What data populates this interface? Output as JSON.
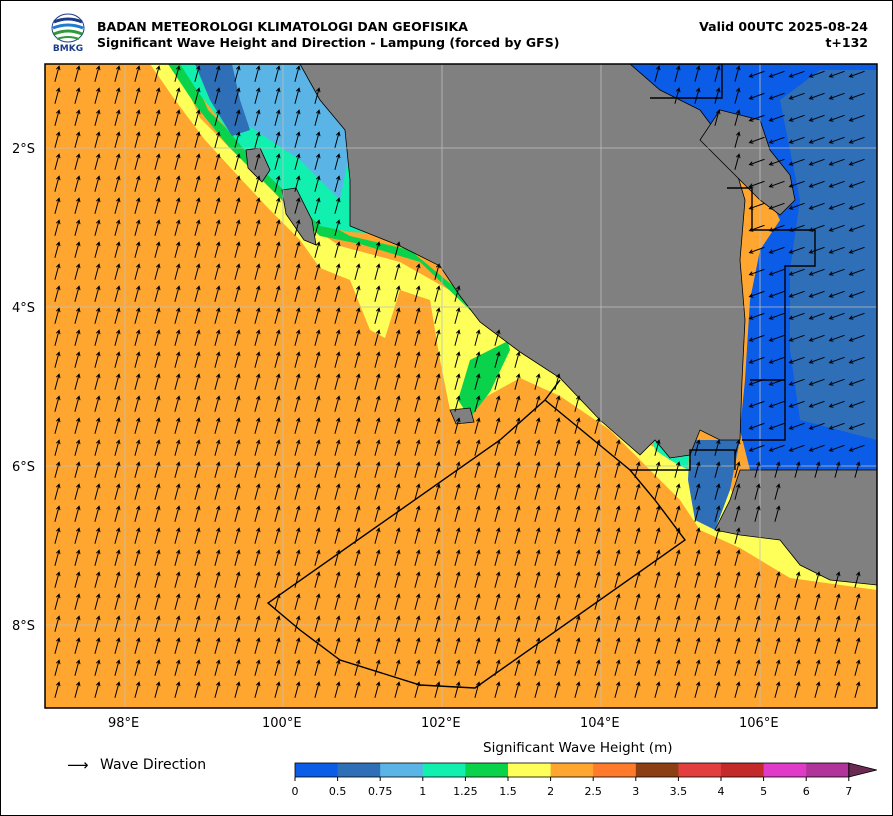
{
  "header": {
    "agency": "BADAN METEOROLOGI KLIMATOLOGI DAN GEOFISIKA",
    "product": "Significant Wave Height and Direction - Lampung (forced by GFS)",
    "valid": "Valid 00UTC 2025-08-24",
    "lead": "t+132",
    "logo_text": "BMKG"
  },
  "map": {
    "lat_labels": [
      "2°S",
      "4°S",
      "6°S",
      "8°S"
    ],
    "lon_labels": [
      "98°E",
      "100°E",
      "102°E",
      "104°E",
      "106°E"
    ],
    "lat_values": [
      -2,
      -4,
      -6,
      -8
    ],
    "lon_values": [
      98,
      100,
      102,
      104,
      106
    ],
    "extent": {
      "lon": [
        97.0,
        107.5
      ],
      "lat": [
        -9.1,
        -1.0
      ]
    },
    "colors": {
      "land": "#808080",
      "ocean_open": "#ffa630",
      "grid": "#bfbfbf",
      "arrow": "#000000"
    },
    "wave_direction_deg_open_sea": 15,
    "wave_direction_deg_java_sea": 250
  },
  "legend": {
    "arrow_glyph": "⟶",
    "arrow_label": "Wave Direction"
  },
  "colorbar": {
    "title": "Significant Wave Height (m)",
    "labels": [
      "0",
      "0.5",
      "0.75",
      "1",
      "1.25",
      "1.5",
      "2",
      "2.5",
      "3",
      "3.5",
      "4",
      "5",
      "6",
      "7"
    ],
    "colors": [
      "#0b5ce6",
      "#2e6fb8",
      "#5ab4e6",
      "#12f0b0",
      "#0ad24a",
      "#ffff5a",
      "#ffa630",
      "#ff7a2a",
      "#8c3f12",
      "#e33e3e",
      "#c42a2a",
      "#e03ac8",
      "#b0349a",
      "#6b2a52"
    ]
  }
}
